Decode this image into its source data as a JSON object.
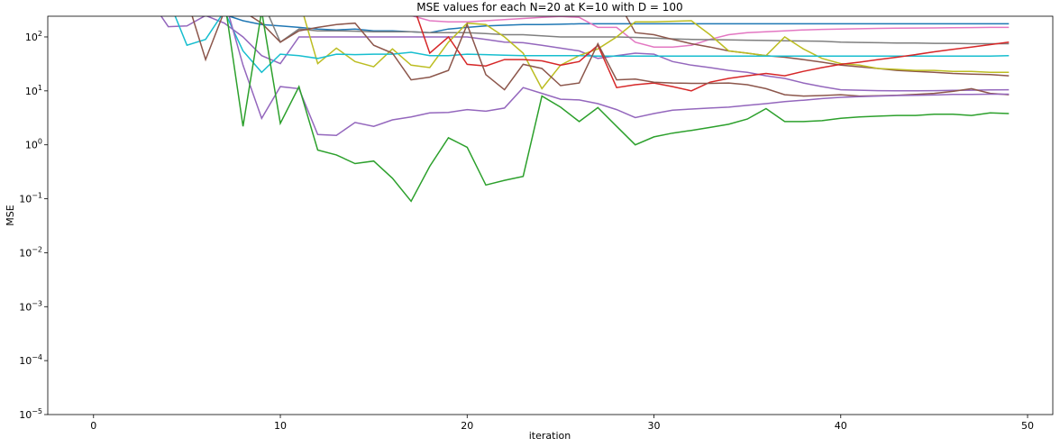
{
  "chart_data": {
    "type": "line",
    "title": "MSE values for each N=20 at K=10 with D = 100",
    "xlabel": "iteration",
    "ylabel": "MSE",
    "yscale": "log",
    "grid": false,
    "xlim": [
      -2.45,
      51.35
    ],
    "ylim": [
      1e-05,
      242
    ],
    "xticks": [
      0,
      10,
      20,
      30,
      40,
      50
    ],
    "yticks": [
      {
        "value": 1e-05,
        "label": "10",
        "exponent": "−5"
      },
      {
        "value": 0.0001,
        "label": "10",
        "exponent": "−4"
      },
      {
        "value": 0.001,
        "label": "10",
        "exponent": "−3"
      },
      {
        "value": 0.01,
        "label": "10",
        "exponent": "−2"
      },
      {
        "value": 0.1,
        "label": "10",
        "exponent": "−1"
      },
      {
        "value": 1,
        "label": "10",
        "exponent": "0"
      },
      {
        "value": 10,
        "label": "10",
        "exponent": "1"
      },
      {
        "value": 100,
        "label": "10",
        "exponent": "2"
      }
    ],
    "x": [
      0,
      1,
      2,
      3,
      4,
      5,
      6,
      7,
      8,
      9,
      10,
      11,
      12,
      13,
      14,
      15,
      16,
      17,
      18,
      19,
      20,
      21,
      22,
      23,
      24,
      25,
      26,
      27,
      28,
      29,
      30,
      31,
      32,
      33,
      34,
      35,
      36,
      37,
      38,
      39,
      40,
      41,
      42,
      43,
      44,
      45,
      46,
      47,
      48,
      49
    ],
    "series": [
      {
        "color": "#1f77b4",
        "values": [
          500,
          500,
          500,
          500,
          500,
          500,
          500,
          260,
          200,
          170,
          160,
          150,
          140,
          135,
          140,
          130,
          130,
          125,
          120,
          140,
          150,
          160,
          165,
          170,
          170,
          172,
          175,
          175,
          175,
          175,
          175,
          175,
          175,
          175,
          175,
          175,
          175,
          175,
          175,
          175,
          175,
          175,
          175,
          175,
          175,
          175,
          175,
          175,
          175,
          175
        ]
      },
      {
        "color": "#e377c2",
        "values": [
          500,
          500,
          500,
          500,
          500,
          500,
          500,
          500,
          500,
          500,
          500,
          500,
          500,
          500,
          500,
          400,
          300,
          250,
          200,
          190,
          190,
          200,
          210,
          220,
          230,
          240,
          230,
          150,
          150,
          80,
          65,
          65,
          70,
          90,
          110,
          120,
          125,
          130,
          135,
          138,
          140,
          142,
          144,
          145,
          146,
          147,
          148,
          149,
          150,
          150
        ]
      },
      {
        "color": "#7f7f7f",
        "values": [
          500,
          500,
          500,
          500,
          500,
          500,
          500,
          500,
          500,
          500,
          80,
          140,
          130,
          130,
          128,
          125,
          125,
          125,
          120,
          120,
          120,
          115,
          110,
          110,
          105,
          100,
          100,
          100,
          100,
          98,
          95,
          92,
          90,
          89,
          88,
          87,
          86,
          85,
          84,
          83,
          80,
          79,
          78,
          77,
          77,
          76,
          76,
          75,
          75,
          75
        ]
      },
      {
        "color": "#8c564b",
        "values": [
          500,
          500,
          500,
          500,
          500,
          500,
          500,
          500,
          500,
          500,
          500,
          500,
          500,
          500,
          500,
          500,
          500,
          500,
          500,
          500,
          500,
          500,
          500,
          500,
          500,
          500,
          500,
          500,
          500,
          120,
          110,
          90,
          75,
          65,
          55,
          50,
          45,
          42,
          38,
          34,
          30,
          28,
          26,
          24,
          23,
          22,
          21,
          20.5,
          20,
          19
        ]
      },
      {
        "color": "#9467bd",
        "values": [
          500,
          500,
          500,
          500,
          155,
          160,
          250,
          180,
          100,
          45,
          32,
          100,
          100,
          100,
          100,
          100,
          100,
          100,
          100,
          100,
          100,
          90,
          80,
          78,
          70,
          62,
          55,
          40,
          45,
          50,
          48,
          35,
          30,
          27,
          24,
          22,
          19,
          17,
          14,
          12,
          10.5,
          10.3,
          10.1,
          10,
          10,
          10.1,
          10.2,
          10.3,
          10.4,
          10.5
        ]
      },
      {
        "color": "#bcbd22",
        "values": [
          500,
          500,
          500,
          500,
          500,
          500,
          500,
          500,
          500,
          500,
          500,
          500,
          32,
          62,
          35,
          28,
          60,
          30,
          27,
          80,
          180,
          170,
          100,
          50,
          11,
          30,
          45,
          60,
          100,
          190,
          190,
          195,
          200,
          110,
          55,
          50,
          45,
          100,
          60,
          40,
          32,
          30,
          26,
          25,
          24,
          24,
          23,
          23,
          22,
          22
        ]
      },
      {
        "color": "#17becf",
        "values": [
          500,
          500,
          500,
          500,
          500,
          70,
          90,
          300,
          55,
          22,
          48,
          45,
          40,
          48,
          47,
          48,
          48,
          52,
          45,
          45,
          48,
          47,
          46,
          45,
          45,
          45,
          45,
          44,
          44,
          44,
          44,
          44,
          44,
          44,
          44,
          44,
          44,
          44,
          44,
          44,
          44,
          44,
          44,
          44,
          44,
          44,
          44,
          44,
          44,
          45
        ]
      },
      {
        "color": "#d62728",
        "values": [
          500,
          500,
          500,
          500,
          500,
          500,
          500,
          500,
          500,
          500,
          500,
          500,
          500,
          500,
          500,
          500,
          500,
          500,
          50,
          100,
          31,
          29,
          38,
          38,
          36,
          30,
          35,
          70,
          11.5,
          13,
          14,
          12,
          10,
          14.5,
          17,
          19,
          21,
          19,
          23,
          27,
          31,
          34,
          38,
          42,
          47,
          53,
          59,
          65,
          72,
          80
        ]
      },
      {
        "color": "#8c564b",
        "values": [
          500,
          500,
          500,
          500,
          500,
          500,
          38,
          300,
          300,
          180,
          80,
          130,
          150,
          170,
          180,
          70,
          50,
          16,
          18,
          24,
          170,
          20,
          10.5,
          31,
          26,
          12.5,
          14,
          75,
          16,
          16.5,
          14.5,
          14,
          13.8,
          13.8,
          14,
          13,
          11,
          8.5,
          8,
          8.2,
          8.5,
          8,
          8.1,
          8.3,
          8.6,
          9,
          9.8,
          11,
          9,
          8.5
        ]
      },
      {
        "color": "#9467bd",
        "values": [
          500,
          500,
          500,
          500,
          500,
          500,
          500,
          500,
          30,
          3.1,
          12,
          11,
          1.55,
          1.5,
          2.6,
          2.2,
          2.9,
          3.3,
          3.9,
          4,
          4.5,
          4.2,
          4.8,
          11.5,
          9,
          7,
          6.8,
          5.8,
          4.5,
          3.2,
          3.8,
          4.4,
          4.6,
          4.8,
          5,
          5.4,
          5.8,
          6.3,
          6.7,
          7.2,
          7.6,
          7.8,
          8,
          8.2,
          8.3,
          8.4,
          8.6,
          8.6,
          8.7,
          8.7
        ]
      },
      {
        "color": "#2ca02c",
        "values": [
          500,
          500,
          500,
          500,
          500,
          500,
          500,
          500,
          2.2,
          300,
          2.5,
          12,
          0.8,
          0.65,
          0.45,
          0.5,
          0.24,
          0.09,
          0.4,
          1.35,
          0.9,
          0.18,
          0.22,
          0.26,
          8,
          5,
          2.7,
          4.9,
          2.2,
          1,
          1.4,
          1.65,
          1.85,
          2.1,
          2.4,
          3,
          4.7,
          2.7,
          2.7,
          2.8,
          3.1,
          3.3,
          3.4,
          3.5,
          3.5,
          3.7,
          3.7,
          3.5,
          3.9,
          3.8
        ]
      }
    ]
  }
}
